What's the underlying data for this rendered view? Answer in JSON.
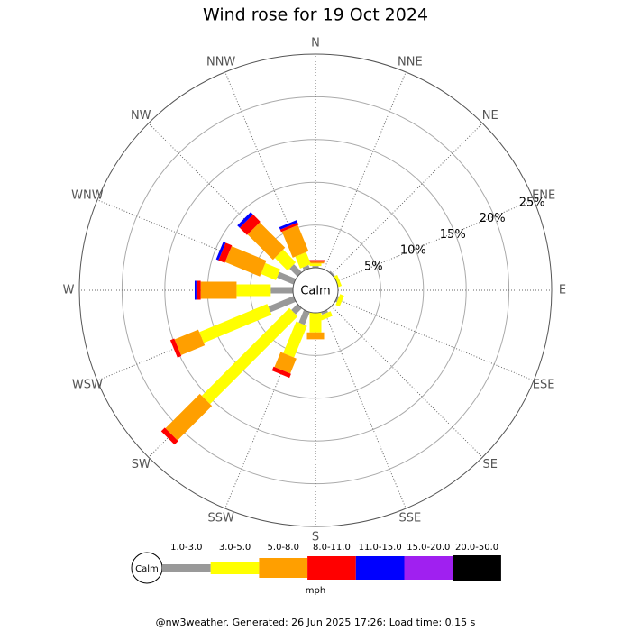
{
  "chart_data": {
    "type": "wind-rose",
    "title": "Wind rose for 19 Oct 2024",
    "categories": [
      "N",
      "NNE",
      "NE",
      "ENE",
      "E",
      "ESE",
      "SE",
      "SSE",
      "S",
      "SSW",
      "SW",
      "WSW",
      "W",
      "WNW",
      "NW",
      "NNW"
    ],
    "center_label": "Calm",
    "unit_label": "mph",
    "rlim": [
      0,
      25
    ],
    "rticks": [
      {
        "value": 5,
        "label": "5%"
      },
      {
        "value": 10,
        "label": "10%"
      },
      {
        "value": 15,
        "label": "15%"
      },
      {
        "value": 20,
        "label": "20%"
      },
      {
        "value": 25,
        "label": "25%"
      }
    ],
    "series": [
      {
        "name": "1.0-3.0",
        "color": "#999999",
        "values": [
          0.2,
          0,
          0.2,
          0,
          0,
          0.2,
          0,
          0.3,
          0,
          1.6,
          1.0,
          3.2,
          2.6,
          2.1,
          1.3,
          0.4
        ]
      },
      {
        "name": "3.0-5.0",
        "color": "#ffff00",
        "values": [
          0.3,
          0,
          0,
          0.4,
          0,
          0.5,
          0,
          0.6,
          2.3,
          4.0,
          14.5,
          8.6,
          4.0,
          1.9,
          2.1,
          1.5
        ]
      },
      {
        "name": "5.0-8.0",
        "color": "#ff9f00",
        "values": [
          0.2,
          0,
          0,
          0,
          0,
          0,
          0,
          0,
          0.8,
          1.9,
          5.7,
          3.0,
          4.2,
          4.4,
          4.2,
          3.3
        ]
      },
      {
        "name": "8.0-11.0",
        "color": "#ff0000",
        "values": [
          0.2,
          0,
          0,
          0,
          0,
          0,
          0,
          0,
          0,
          0.5,
          0.6,
          0.5,
          0.5,
          0.8,
          1.2,
          0.3
        ]
      },
      {
        "name": "11.0-15.0",
        "color": "#0000ff",
        "values": [
          0,
          0,
          0,
          0,
          0,
          0,
          0,
          0,
          0,
          0,
          0,
          0,
          0.2,
          0.3,
          0.4,
          0.3
        ]
      },
      {
        "name": "15.0-20.0",
        "color": "#a020f0",
        "values": [
          0,
          0,
          0,
          0,
          0,
          0,
          0,
          0,
          0,
          0,
          0,
          0,
          0,
          0,
          0,
          0
        ]
      },
      {
        "name": "20.0-50.0",
        "color": "#000000",
        "values": [
          0,
          0,
          0,
          0,
          0,
          0,
          0,
          0,
          0,
          0,
          0,
          0,
          0,
          0,
          0,
          0
        ]
      }
    ]
  },
  "footer": "@nw3weather. Generated: 26 Jun 2025 17:26; Load time: 0.15 s"
}
